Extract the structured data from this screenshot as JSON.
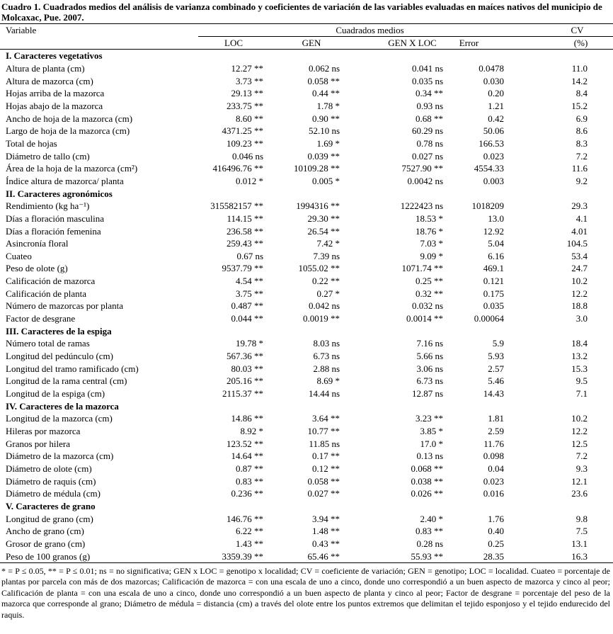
{
  "caption": "Cuadro 1. Cuadrados medios del análisis de varianza combinado y coeficientes  de variación de las variables evaluadas en maíces nativos del municipio de Molcaxac, Pue. 2007.",
  "header": {
    "variable": "Variable",
    "group": "Cuadrados medios",
    "cv": "CV",
    "columns": [
      "LOC",
      "GEN",
      "GEN X LOC",
      "Error",
      "(%)"
    ]
  },
  "sections": [
    {
      "title": "I. Caracteres vegetativos",
      "rows": [
        [
          "Altura de planta  (cm)",
          "12.27 **",
          "0.062 ns",
          "0.041 ns",
          "0.0478",
          "11.0"
        ],
        [
          "Altura de mazorca (cm)",
          "3.73 **",
          "0.058 **",
          "0.035 ns",
          "0.030",
          "14.2"
        ],
        [
          "Hojas arriba de la mazorca",
          "29.13 **",
          "0.44 **",
          "0.34 **",
          "0.20",
          "8.4"
        ],
        [
          "Hojas abajo de la mazorca",
          "233.75 **",
          "1.78 *",
          "0.93 ns",
          "1.21",
          "15.2"
        ],
        [
          "Ancho de hoja de la mazorca (cm)",
          "8.60 **",
          "0.90 **",
          "0.68 **",
          "0.42",
          "6.9"
        ],
        [
          "Largo de hoja  de la mazorca (cm)",
          "4371.25 **",
          "52.10 ns",
          "60.29 ns",
          "50.06",
          "8.6"
        ],
        [
          "Total de hojas",
          "109.23 **",
          "1.69 *",
          "0.78 ns",
          "166.53",
          "8.3"
        ],
        [
          "Diámetro de tallo (cm)",
          "0.046 ns",
          "0.039 **",
          "0.027 ns",
          "0.023",
          "7.2"
        ],
        [
          "Área de la hoja de la mazorca (cm²)",
          "416496.76 **",
          "10109.28 **",
          "7527.90 **",
          "4554.33",
          "11.6"
        ],
        [
          "Índice altura de mazorca/ planta",
          "0.012 *",
          "0.005 *",
          "0.0042 ns",
          "0.003",
          "9.2"
        ]
      ]
    },
    {
      "title": "II. Caracteres agronómicos",
      "rows": [
        [
          "Rendimiento (kg ha⁻¹)",
          "315582157 **",
          "1994316 **",
          "1222423 ns",
          "1018209",
          "29.3"
        ],
        [
          "Días a floración masculina",
          "114.15 **",
          "29.30 **",
          "18.53 *",
          "13.0",
          "4.1"
        ],
        [
          "Días a floración femenina",
          "236.58 **",
          "26.54 **",
          "18.76 *",
          "12.92",
          "4.01"
        ],
        [
          "Asincronía floral",
          "259.43 **",
          "7.42 *",
          "7.03 *",
          "5.04",
          "104.5"
        ],
        [
          "Cuateo",
          "0.67 ns",
          "7.39 ns",
          "9.09 *",
          "6.16",
          "53.4"
        ],
        [
          "Peso de olote (g)",
          "9537.79 **",
          "1055.02 **",
          "1071.74 **",
          "469.1",
          "24.7"
        ],
        [
          "Calificación de mazorca",
          "4.54 **",
          "0.22 **",
          "0.25 **",
          "0.121",
          "10.2"
        ],
        [
          "Calificación de planta",
          "3.75 **",
          "0.27 *",
          "0.32 **",
          "0.175",
          "12.2"
        ],
        [
          "Número de mazorcas por planta",
          "0.487 **",
          "0.042 ns",
          "0.032 ns",
          "0.035",
          "18.8"
        ],
        [
          "Factor de desgrane",
          "0.044 **",
          "0.0019 **",
          "0.0014 **",
          "0.00064",
          "3.0"
        ]
      ]
    },
    {
      "title": "III. Caracteres de la espiga",
      "rows": [
        [
          "Número total de ramas",
          "19.78 *",
          "8.03 ns",
          "7.16 ns",
          "5.9",
          "18.4"
        ],
        [
          "Longitud del pedúnculo (cm)",
          "567.36 **",
          "6.73 ns",
          "5.66 ns",
          "5.93",
          "13.2"
        ],
        [
          "Longitud del tramo ramificado (cm)",
          "80.03 **",
          "2.88 ns",
          "3.06 ns",
          "2.57",
          "15.3"
        ],
        [
          "Longitud de la rama central  (cm)",
          "205.16 **",
          "8.69 *",
          "6.73 ns",
          "5.46",
          "9.5"
        ],
        [
          "Longitud de la espiga  (cm)",
          "2115.37 **",
          "14.44 ns",
          "12.87 ns",
          "14.43",
          "7.1"
        ]
      ]
    },
    {
      "title": "IV. Caracteres de la mazorca",
      "rows": [
        [
          "Longitud de la mazorca (cm)",
          "14.86 **",
          "3.64 **",
          "3.23 **",
          "1.81",
          "10.2"
        ],
        [
          "Hileras por mazorca",
          "8.92 *",
          "10.77 **",
          "3.85 *",
          "2.59",
          "12.2"
        ],
        [
          "Granos por hilera",
          "123.52 **",
          "11.85 ns",
          "17.0 *",
          "11.76",
          "12.5"
        ],
        [
          "Diámetro de la mazorca  (cm)",
          "14.64 **",
          "0.17 **",
          "0.13 ns",
          "0.098",
          "7.2"
        ],
        [
          "Diámetro de olote (cm)",
          "0.87 **",
          "0.12 **",
          "0.068 **",
          "0.04",
          "9.3"
        ],
        [
          "Diámetro de raquis (cm)",
          "0.83 **",
          "0.058 **",
          "0.038 **",
          "0.023",
          "12.1"
        ],
        [
          "Diámetro de médula (cm)",
          "0.236 **",
          "0.027 **",
          "0.026 **",
          "0.016",
          "23.6"
        ]
      ]
    },
    {
      "title": "V. Caracteres de grano",
      "rows": [
        [
          "Longitud de grano (cm)",
          "146.76 **",
          "3.94 **",
          "2.40 *",
          "1.76",
          "9.8"
        ],
        [
          "Ancho de grano (cm)",
          "6.22 **",
          "1.48 **",
          "0.83 **",
          "0.40",
          "7.5"
        ],
        [
          "Grosor de grano (cm)",
          "1.43 **",
          "0.43 **",
          "0.28 ns",
          "0.25",
          "13.1"
        ],
        [
          "Peso de 100 granos (g)",
          "3359.39 **",
          "65.46 **",
          "55.93 **",
          "28.35",
          "16.3"
        ]
      ]
    }
  ],
  "footnote": "* = P ≤ 0.05, ** = P ≤ 0.01;  ns = no significativa; GEN x LOC = genotipo x localidad; CV = coeficiente de variación; GEN = genotipo;  LOC = localidad. Cuateo = porcentaje de plantas por parcela con más de dos mazorcas; Calificación de mazorca = con una escala de uno a cinco, donde uno correspondió a un buen aspecto de  mazorca y cinco al peor; Calificación de planta = con una escala de uno a cinco, donde uno correspondió a un buen aspecto de planta y cinco al peor; Factor de desgrane = porcentaje del peso de la mazorca que corresponde al grano; Diámetro de médula = distancia (cm) a través del olote entre los puntos extremos que delimitan el tejido esponjoso y el tejido endurecido del raquis."
}
